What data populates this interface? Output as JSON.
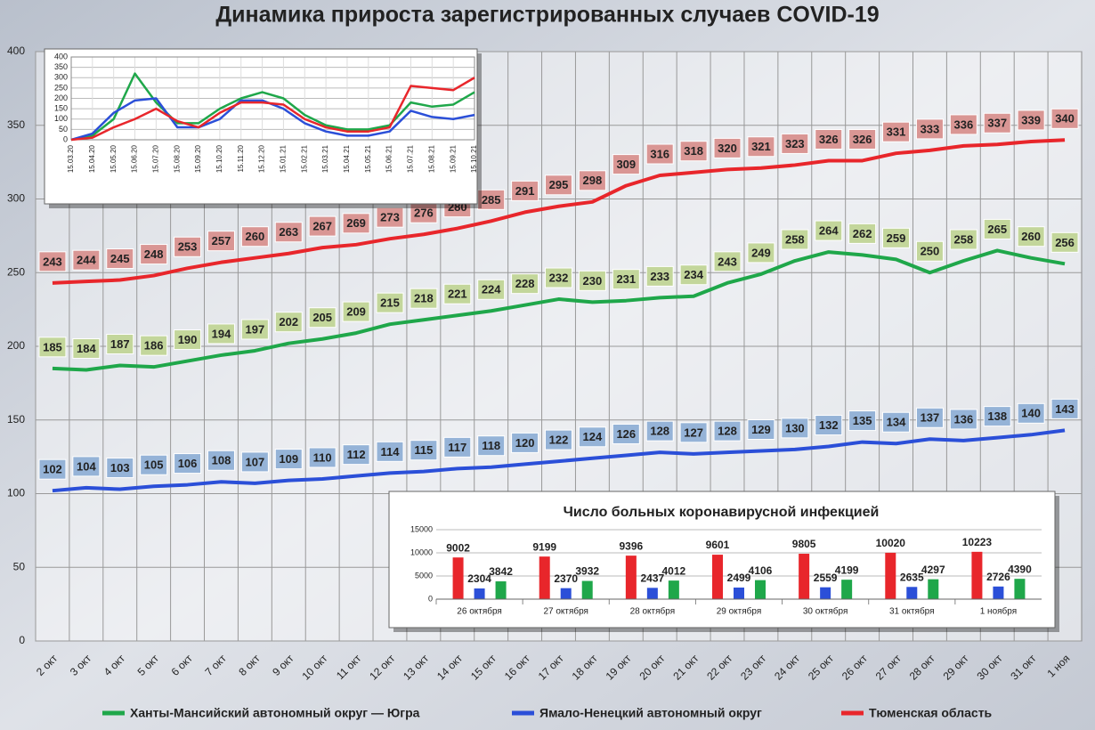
{
  "chart_data": [
    {
      "type": "line",
      "title": "Динамика прироста зарегистрированных случаев COVID-19",
      "categories": [
        "2 окт",
        "3 окт",
        "4 окт",
        "5 окт",
        "6 окт",
        "7 окт",
        "8 окт",
        "9 окт",
        "10 окт",
        "11 окт",
        "12 окт",
        "13 окт",
        "14 окт",
        "15 окт",
        "16 окт",
        "17 окт",
        "18 окт",
        "19 окт",
        "20 окт",
        "21 окт",
        "22 окт",
        "23 окт",
        "24 окт",
        "25 окт",
        "26 окт",
        "27 окт",
        "28 окт",
        "29 окт",
        "30 окт",
        "31 окт",
        "1 ноя"
      ],
      "series": [
        {
          "name": "Ханты-Мансийский автономный округ — Югра",
          "color": "#1fa74a",
          "label_color": "#c3d69b",
          "values": [
            185,
            184,
            187,
            186,
            190,
            194,
            197,
            202,
            205,
            209,
            215,
            218,
            221,
            224,
            228,
            232,
            230,
            231,
            233,
            234,
            243,
            249,
            258,
            264,
            262,
            259,
            250,
            258,
            265,
            260,
            256
          ]
        },
        {
          "name": "Ямало-Ненецкий автономный округ",
          "color": "#2b4fd8",
          "label_color": "#95b3d7",
          "values": [
            102,
            104,
            103,
            105,
            106,
            108,
            107,
            109,
            110,
            112,
            114,
            115,
            117,
            118,
            120,
            122,
            124,
            126,
            128,
            127,
            128,
            129,
            130,
            132,
            135,
            134,
            137,
            136,
            138,
            140,
            143
          ]
        },
        {
          "name": "Тюменская область",
          "color": "#e8262b",
          "label_color": "#d99694",
          "values": [
            243,
            244,
            245,
            248,
            253,
            257,
            260,
            263,
            267,
            269,
            273,
            276,
            280,
            285,
            291,
            295,
            298,
            309,
            316,
            318,
            320,
            321,
            323,
            326,
            326,
            331,
            333,
            336,
            337,
            339,
            340
          ]
        }
      ],
      "ylim": [
        0,
        400
      ],
      "yticks": [
        0,
        50,
        100,
        150,
        200,
        250,
        300,
        350,
        400
      ],
      "grid": true
    },
    {
      "type": "line",
      "categories": [
        "15.03.20",
        "15.04.20",
        "15.05.20",
        "15.06.20",
        "15.07.20",
        "15.08.20",
        "15.09.20",
        "15.10.20",
        "15.11.20",
        "15.12.20",
        "15.01.21",
        "15.02.21",
        "15.03.21",
        "15.04.21",
        "15.05.21",
        "15.06.21",
        "15.07.21",
        "15.08.21",
        "15.09.21",
        "15.10.21"
      ],
      "series": [
        {
          "color": "#1fa74a",
          "values": [
            0,
            20,
            100,
            320,
            180,
            80,
            80,
            150,
            200,
            230,
            200,
            120,
            70,
            50,
            50,
            70,
            180,
            160,
            170,
            230
          ]
        },
        {
          "color": "#2b4fd8",
          "values": [
            0,
            30,
            130,
            190,
            200,
            60,
            60,
            100,
            190,
            190,
            150,
            80,
            40,
            20,
            20,
            40,
            140,
            110,
            100,
            120
          ]
        },
        {
          "color": "#e8262b",
          "values": [
            0,
            10,
            60,
            100,
            150,
            90,
            60,
            130,
            180,
            180,
            170,
            100,
            60,
            40,
            40,
            60,
            260,
            250,
            240,
            300
          ]
        }
      ],
      "ylim": [
        0,
        400
      ],
      "yticks": [
        0,
        50,
        100,
        150,
        200,
        250,
        300,
        350,
        400
      ],
      "grid": true
    },
    {
      "type": "bar",
      "title": "Число больных коронавирусной инфекцией",
      "categories": [
        "26 октября",
        "27 октября",
        "28 октября",
        "29 октября",
        "30 октября",
        "31 октября",
        "1 ноября"
      ],
      "series": [
        {
          "color": "#e8262b",
          "values": [
            9002,
            9199,
            9396,
            9601,
            9805,
            10020,
            10223
          ]
        },
        {
          "color": "#2b4fd8",
          "values": [
            2304,
            2370,
            2437,
            2499,
            2559,
            2635,
            2726
          ]
        },
        {
          "color": "#1fa74a",
          "values": [
            3842,
            3932,
            4012,
            4106,
            4199,
            4297,
            4390
          ]
        }
      ],
      "ylim": [
        0,
        15000
      ],
      "yticks": [
        0,
        5000,
        10000,
        15000
      ],
      "grid": true
    }
  ]
}
